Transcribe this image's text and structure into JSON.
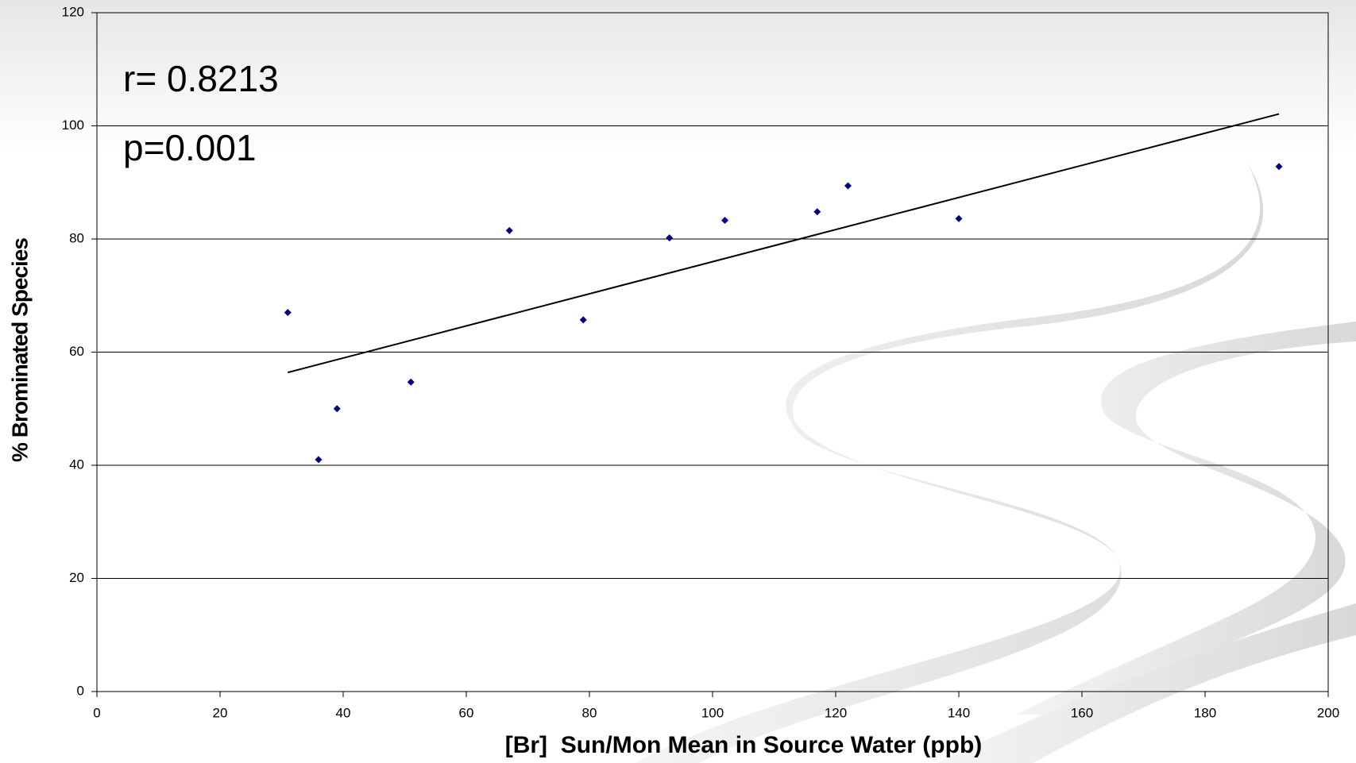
{
  "chart_data": {
    "type": "scatter",
    "x_label": "[Br]  Sun/Mon Mean in Source Water (ppb)",
    "y_label": "% Brominated Species",
    "annotations": [
      "r= 0.8213",
      "p=0.001"
    ],
    "x": [
      31,
      36,
      39,
      51,
      67,
      79,
      93,
      102,
      117,
      122,
      140,
      192
    ],
    "values": [
      67,
      41,
      50,
      54.7,
      81.5,
      65.7,
      80.2,
      83.3,
      84.8,
      89.4,
      83.6,
      92.8
    ],
    "color": "#000080",
    "trendline": {
      "x": [
        31,
        192
      ],
      "y": [
        56.4,
        102.1
      ],
      "color": "#000000"
    },
    "xlim": [
      0,
      200
    ],
    "xticks": [
      0,
      20,
      40,
      60,
      80,
      100,
      120,
      140,
      160,
      180,
      200
    ],
    "ylim": [
      0,
      120
    ],
    "yticks": [
      0,
      20,
      40,
      60,
      80,
      100,
      120
    ],
    "grid": true
  }
}
